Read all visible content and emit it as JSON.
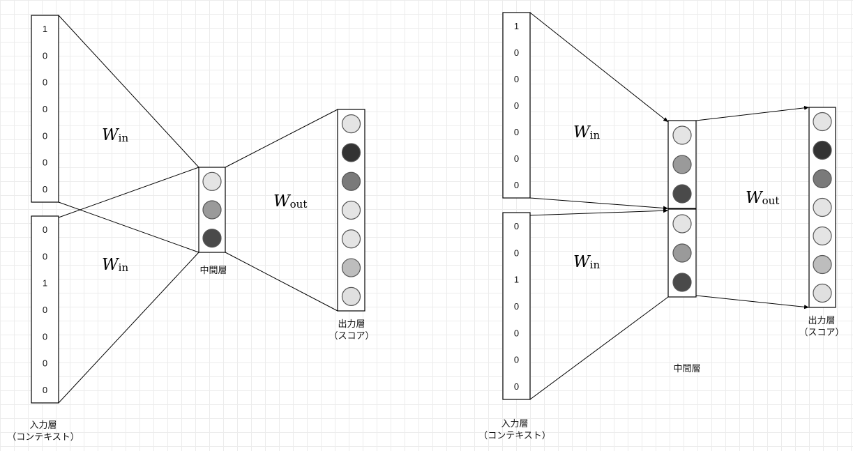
{
  "diagrams": [
    {
      "input_vectors": [
        [
          "1",
          "0",
          "0",
          "0",
          "0",
          "0",
          "0"
        ],
        [
          "0",
          "0",
          "1",
          "0",
          "0",
          "0",
          "0"
        ]
      ],
      "weight_in": {
        "symbol": "W",
        "sub": "in"
      },
      "weight_out": {
        "symbol": "W",
        "sub": "out"
      },
      "hidden_units": [
        [
          "#e4e4e4",
          "#9a9a9a",
          "#4a4a4a"
        ]
      ],
      "output_units": [
        "#e4e4e4",
        "#333333",
        "#7a7a7a",
        "#e4e4e4",
        "#e4e4e4",
        "#bdbdbd",
        "#e0e0e0"
      ],
      "labels": {
        "input": [
          "入力層",
          "（コンテキスト）"
        ],
        "hidden": "中間層",
        "output": [
          "出力層",
          "（スコア）"
        ]
      }
    },
    {
      "input_vectors": [
        [
          "1",
          "0",
          "0",
          "0",
          "0",
          "0",
          "0"
        ],
        [
          "0",
          "0",
          "1",
          "0",
          "0",
          "0",
          "0"
        ]
      ],
      "weight_in": {
        "symbol": "W",
        "sub": "in"
      },
      "weight_out": {
        "symbol": "W",
        "sub": "out"
      },
      "hidden_units": [
        [
          "#e4e4e4",
          "#9a9a9a",
          "#4a4a4a"
        ],
        [
          "#e4e4e4",
          "#9a9a9a",
          "#4a4a4a"
        ]
      ],
      "output_units": [
        "#e4e4e4",
        "#333333",
        "#7a7a7a",
        "#e4e4e4",
        "#e4e4e4",
        "#bdbdbd",
        "#e0e0e0"
      ],
      "labels": {
        "input": [
          "入力層",
          "（コンテキスト）"
        ],
        "hidden": "中間層",
        "output": [
          "出力層",
          "（スコア）"
        ]
      }
    }
  ]
}
